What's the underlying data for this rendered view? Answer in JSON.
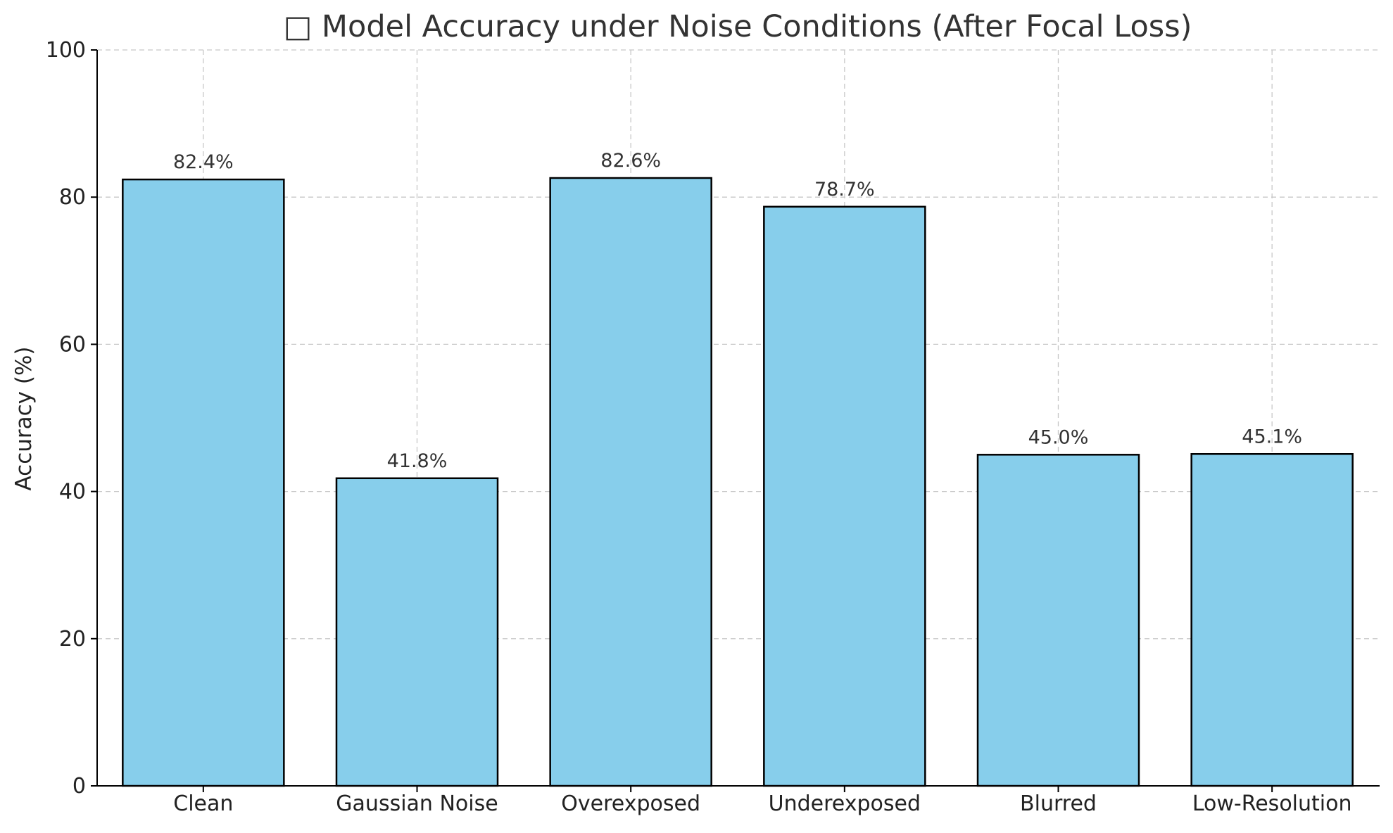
{
  "chart_data": {
    "type": "bar",
    "title": "□ Model Accuracy under Noise Conditions (After Focal Loss)",
    "xlabel": "",
    "ylabel": "Accuracy (%)",
    "categories": [
      "Clean",
      "Gaussian Noise",
      "Overexposed",
      "Underexposed",
      "Blurred",
      "Low-Resolution"
    ],
    "values": [
      82.4,
      41.8,
      82.6,
      78.7,
      45.0,
      45.1
    ],
    "data_labels": [
      "82.4%",
      "41.8%",
      "82.6%",
      "78.7%",
      "45.0%",
      "45.1%"
    ],
    "ylim": [
      0,
      100
    ],
    "yticks": [
      0,
      20,
      40,
      60,
      80,
      100
    ],
    "ytick_labels": [
      "0",
      "20",
      "40",
      "60",
      "80",
      "100"
    ],
    "grid": true,
    "legend": "none",
    "bar_color": "#87ceeb",
    "edge_color": "#000000"
  }
}
